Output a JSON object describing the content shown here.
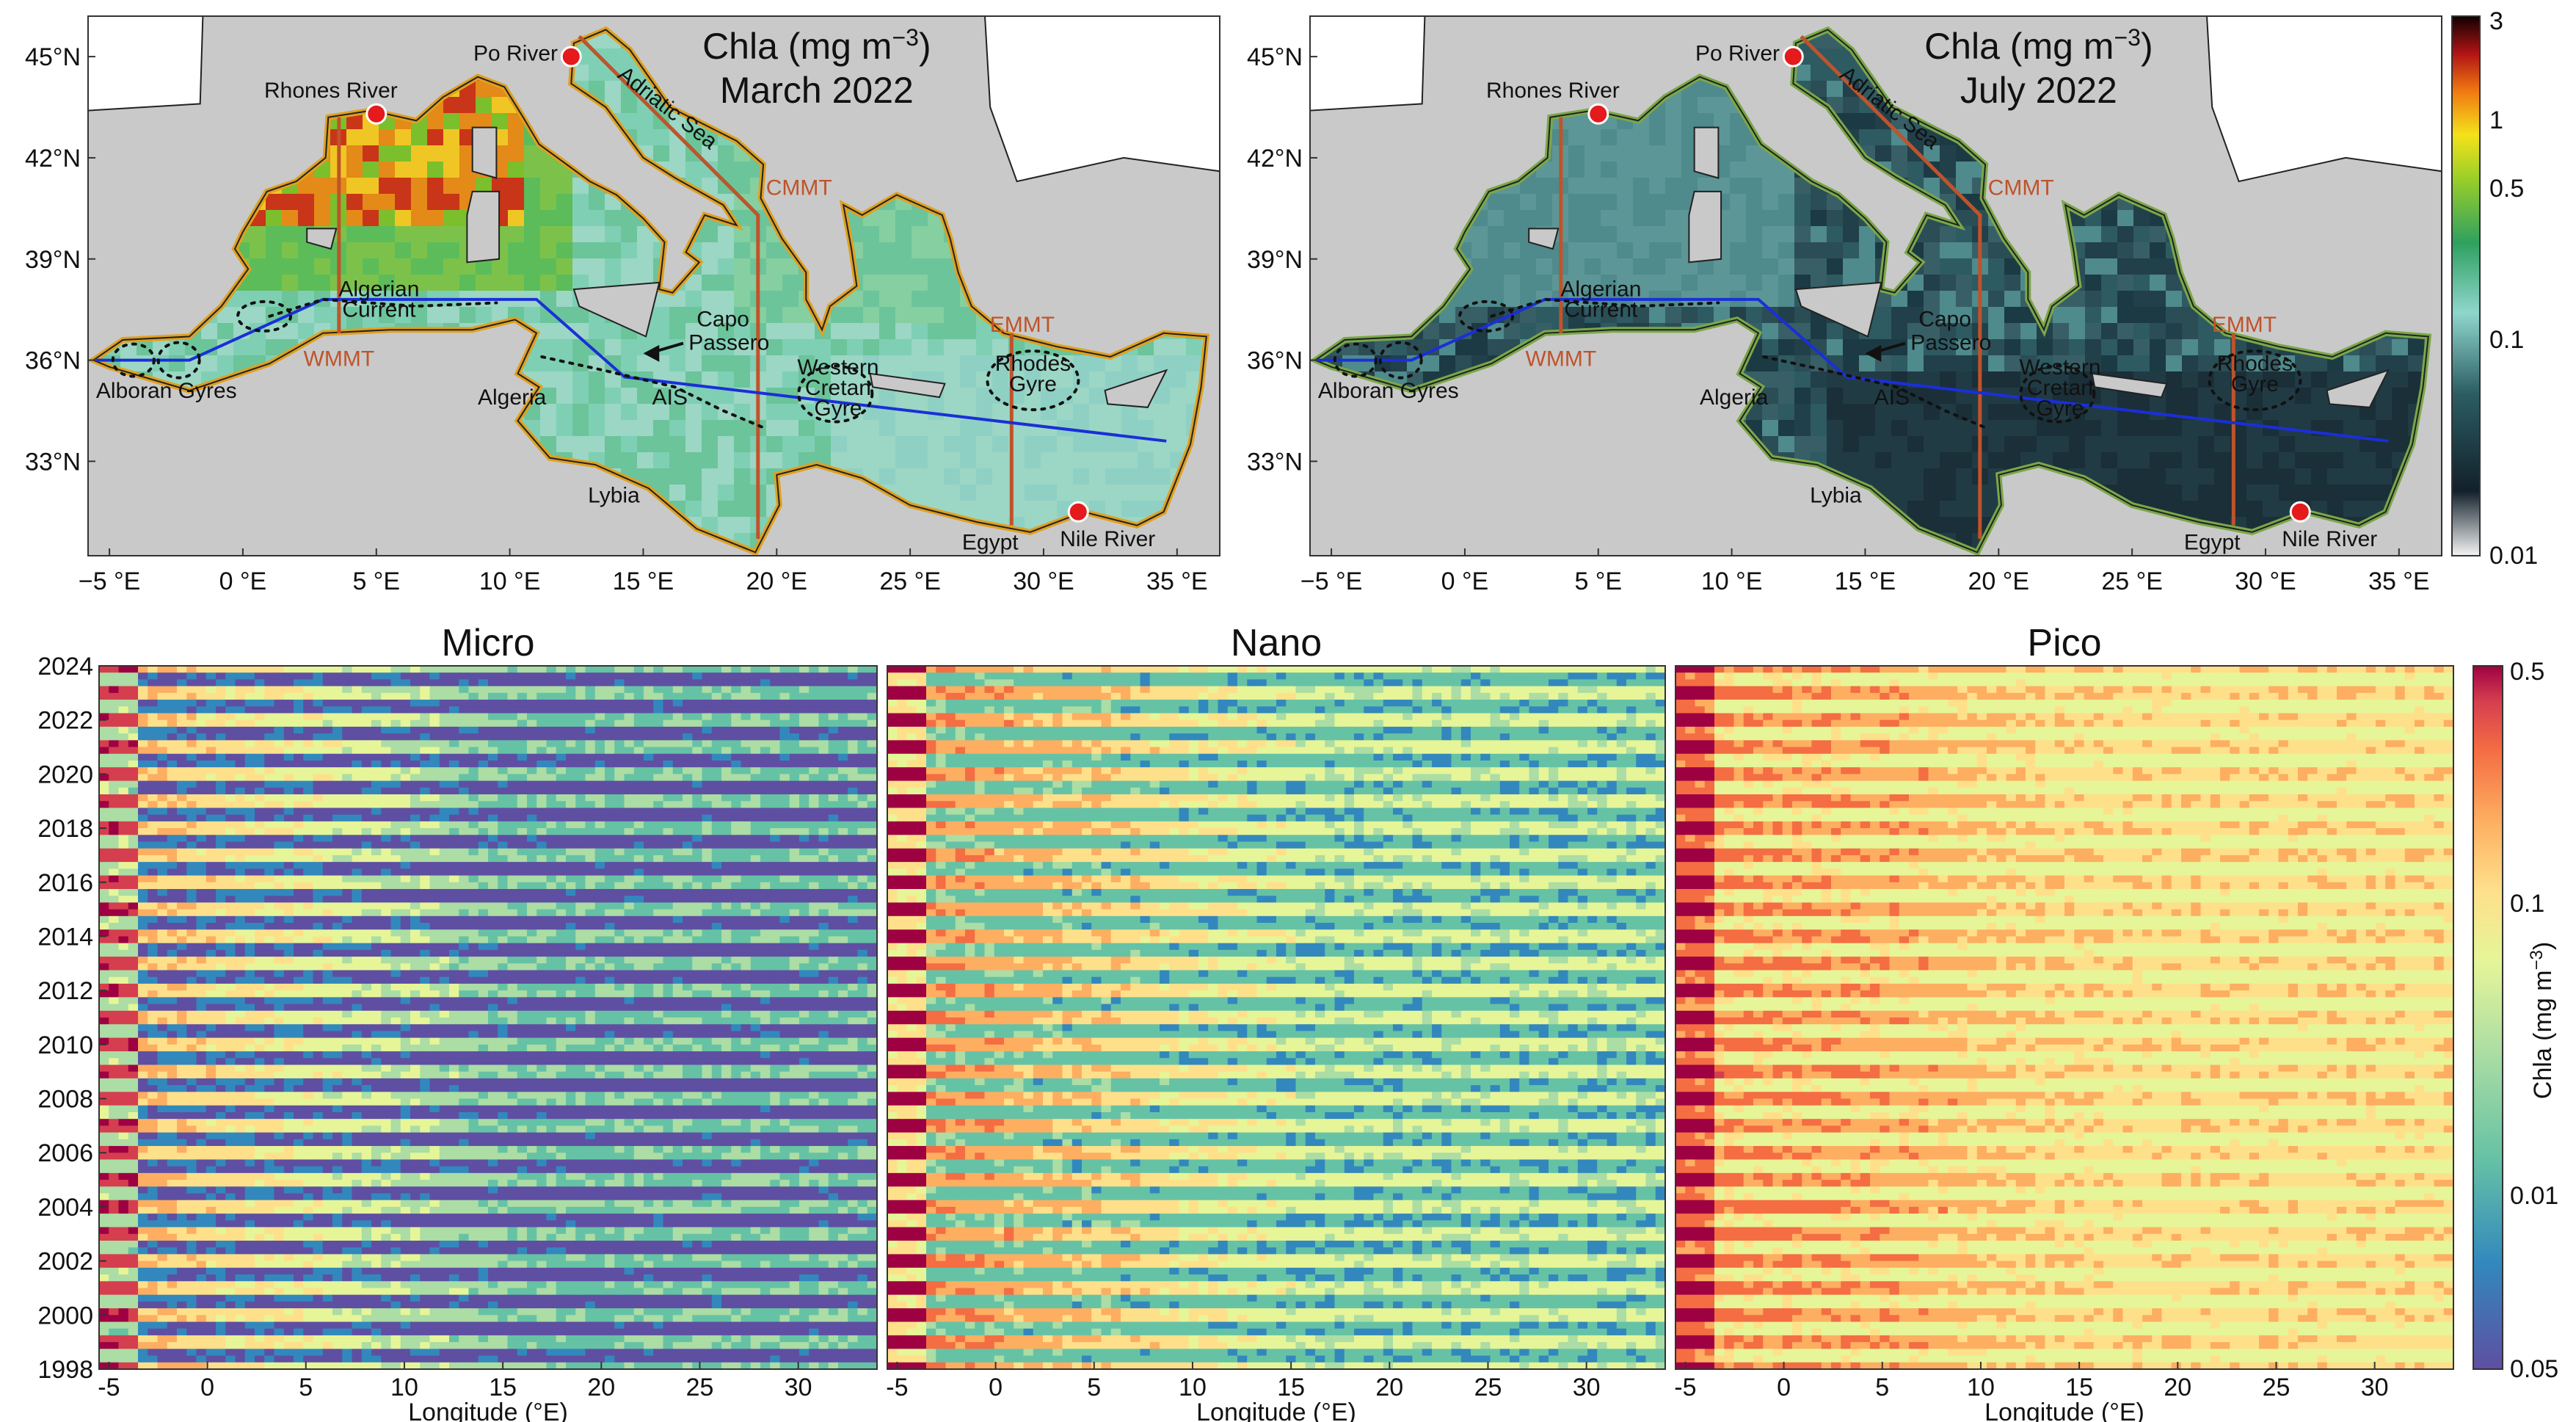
{
  "maps": [
    {
      "title_line1": "Chla (mg m",
      "title_sup": "−3",
      "title_close": ")",
      "title_line2": "March 2022",
      "theme": "bloom"
    },
    {
      "title_line1": "Chla (mg m",
      "title_sup": "−3",
      "title_close": ")",
      "title_line2": "July 2022",
      "theme": "oligo"
    }
  ],
  "map_axes": {
    "lon_ticks": [
      "−5 °E",
      "0 °E",
      "5 °E",
      "10 °E",
      "15 °E",
      "20 °E",
      "25 °E",
      "30 °E",
      "35 °E"
    ],
    "lat_ticks": [
      "45°N",
      "42°N",
      "39°N",
      "36°N",
      "33°N"
    ]
  },
  "map_labels": {
    "po_river": "Po River",
    "rhones_river": "Rhones River",
    "adriatic_sea": "Adriatic Sea",
    "cmmt": "CMMT",
    "algerian_current_1": "Algerian",
    "algerian_current_2": "Current",
    "capo_passero_1": "Capo",
    "capo_passero_2": "Passero",
    "wmmt": "WMMT",
    "emmt": "EMMT",
    "alboran_gyres": "Alboran Gyres",
    "algeria": "Algeria",
    "ais": "AIS",
    "western_cretan_gyre_1": "Western",
    "western_cretan_gyre_2": "Cretan",
    "western_cretan_gyre_3": "Gyre",
    "rhodes_gyre_1": "Rhodes",
    "rhodes_gyre_2": "Gyre",
    "lybia": "Lybia",
    "egypt": "Egypt",
    "nile_river": "Nile River"
  },
  "map_colorbar": {
    "scale": "log",
    "range": [
      0.01,
      3
    ],
    "ticks": [
      "3",
      "1",
      "0.5",
      "0.1",
      "0.01"
    ]
  },
  "chart_data": [
    {
      "type": "heatmap",
      "title": "Micro",
      "xlabel": "Longitude (°E)",
      "ylabel": "",
      "xlim": [
        -5.5,
        34
      ],
      "ylim": [
        1998,
        2024
      ],
      "x_ticks": [
        "-5",
        "0",
        "5",
        "10",
        "15",
        "20",
        "25",
        "30"
      ],
      "y_ticks": [
        "1998",
        "2000",
        "2002",
        "2004",
        "2006",
        "2008",
        "2010",
        "2012",
        "2014",
        "2016",
        "2018",
        "2020",
        "2022",
        "2024"
      ],
      "level_winter_west": 0.35,
      "level_summer_east": 0.05
    },
    {
      "type": "heatmap",
      "title": "Nano",
      "xlabel": "Longitude (°E)",
      "ylabel": "",
      "xlim": [
        -5.5,
        34
      ],
      "ylim": [
        1998,
        2024
      ],
      "x_ticks": [
        "-5",
        "0",
        "5",
        "10",
        "15",
        "20",
        "25",
        "30"
      ],
      "y_ticks": [],
      "level_winter_west": 0.3,
      "level_summer_east": 0.06
    },
    {
      "type": "heatmap",
      "title": "Pico",
      "xlabel": "Longitude (°E)",
      "ylabel": "",
      "xlim": [
        -5.5,
        34
      ],
      "ylim": [
        1998,
        2024
      ],
      "x_ticks": [
        "-5",
        "0",
        "5",
        "10",
        "15",
        "20",
        "25",
        "30"
      ],
      "y_ticks": [],
      "level_winter_west": 0.25,
      "level_summer_east": 0.1
    }
  ],
  "heatmap_colorbar": {
    "scale": "log",
    "range": [
      0.05,
      0.5
    ],
    "ticks": [
      "0.5",
      "0.1",
      "0.01",
      "0.05"
    ],
    "label": "Chla (mg m"
  }
}
